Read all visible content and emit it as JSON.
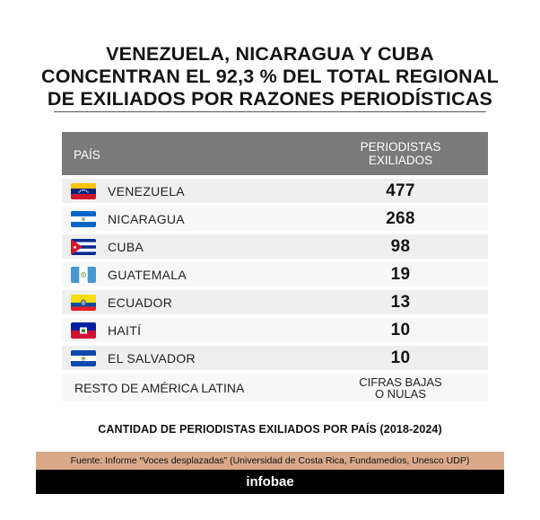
{
  "title_lines": [
    "VENEZUELA, NICARAGUA Y CUBA",
    "CONCENTRAN EL 92,3 % DEL TOTAL REGIONAL",
    "DE EXILIADOS POR RAZONES PERIODÍSTICAS"
  ],
  "table": {
    "header_country": "PAÍS",
    "header_value_line1": "PERIODISTAS",
    "header_value_line2": "EXILIADOS"
  },
  "chart_data": {
    "type": "table",
    "columns": [
      "PAÍS",
      "PERIODISTAS EXILIADOS"
    ],
    "rows": [
      {
        "country": "VENEZUELA",
        "value": "477",
        "flag_icon": "venezuela-flag-icon"
      },
      {
        "country": "NICARAGUA",
        "value": "268",
        "flag_icon": "nicaragua-flag-icon"
      },
      {
        "country": "CUBA",
        "value": "98",
        "flag_icon": "cuba-flag-icon"
      },
      {
        "country": "GUATEMALA",
        "value": "19",
        "flag_icon": "guatemala-flag-icon"
      },
      {
        "country": "ECUADOR",
        "value": "13",
        "flag_icon": "ecuador-flag-icon"
      },
      {
        "country": "HAITÍ",
        "value": "10",
        "flag_icon": "haiti-flag-icon"
      },
      {
        "country": "EL SALVADOR",
        "value": "10",
        "flag_icon": "el-salvador-flag-icon"
      }
    ],
    "rest": {
      "country": "RESTO DE AMÉRICA LATINA",
      "value_line1": "CIFRAS BAJAS",
      "value_line2": "O NULAS"
    }
  },
  "caption": "CANTIDAD DE PERIODISTAS EXILIADOS POR PAÍS (2018-2024)",
  "source": "Fuente: Informe “Voces desplazadas” (Universidad de Costa Rica, Fundamedios, Unesco UDP)",
  "brand": "infobae",
  "colors": {
    "header_bg": "#7a7a7a",
    "row_bg_dark": "#efefef",
    "row_bg_light": "#f7f7f7",
    "source_bg": "#d9a98a",
    "brand_bg": "#000000"
  }
}
